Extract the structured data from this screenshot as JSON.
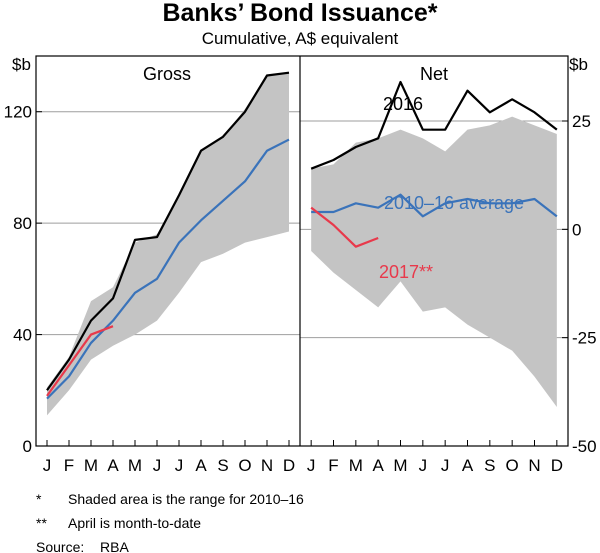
{
  "chart_data": {
    "title": "Banks’ Bond Issuance*",
    "subtitle": "Cumulative, A$ equivalent",
    "unit_left": "$b",
    "unit_right": "$b",
    "months": [
      "J",
      "F",
      "M",
      "A",
      "M",
      "J",
      "J",
      "A",
      "S",
      "O",
      "N",
      "D"
    ],
    "colors": {
      "range": "#c4c4c4",
      "black": "#000000",
      "blue": "#3a73ba",
      "red": "#e8394b"
    },
    "panels": [
      {
        "title": "Gross",
        "type": "line",
        "ylim": [
          0,
          140
        ],
        "yticks": [
          0,
          40,
          80,
          120
        ],
        "range_upper": [
          21,
          32,
          52,
          57,
          73,
          76,
          90,
          106,
          111,
          121,
          133,
          134
        ],
        "range_lower": [
          11,
          20,
          31,
          36,
          40,
          45,
          55,
          66,
          69,
          73,
          75,
          77
        ],
        "series": [
          {
            "key": "2016",
            "color": "black",
            "values": [
              20,
              31,
              45,
              53,
              74,
              75,
              90,
              106,
              111,
              120,
              133,
              134
            ]
          },
          {
            "key": "avg",
            "color": "blue",
            "values": [
              17,
              25,
              37,
              45,
              55,
              60,
              73,
              81,
              88,
              95,
              106,
              110
            ]
          },
          {
            "key": "2017",
            "color": "red",
            "values": [
              18,
              29,
              40,
              43
            ]
          }
        ]
      },
      {
        "title": "Net",
        "type": "line",
        "ylim": [
          -50,
          40
        ],
        "yticks": [
          -50,
          -25,
          0,
          25
        ],
        "range_upper": [
          14,
          15,
          20,
          21,
          23,
          21,
          18,
          23,
          24,
          26,
          24,
          22
        ],
        "range_lower": [
          -5,
          -10,
          -14,
          -18,
          -12,
          -19,
          -18,
          -22,
          -25,
          -28,
          -34,
          -41
        ],
        "series": [
          {
            "key": "2016",
            "color": "black",
            "values": [
              14,
              16,
              19,
              21,
              34,
              23,
              23,
              32,
              27,
              30,
              27,
              23
            ]
          },
          {
            "key": "avg",
            "color": "blue",
            "values": [
              4,
              4,
              6,
              5,
              8,
              3,
              6,
              7,
              6,
              6,
              7,
              3
            ]
          },
          {
            "key": "2017",
            "color": "red",
            "values": [
              5,
              1,
              -4,
              -2
            ]
          }
        ]
      }
    ],
    "annotations": {
      "s2016": "2016",
      "avg": "2010–16 average",
      "s2017": "2017**"
    },
    "notes": [
      {
        "mark": "*",
        "text": "Shaded area is the range for 2010–16"
      },
      {
        "mark": "**",
        "text": "April is month-to-date"
      }
    ],
    "source": {
      "label": "Source:",
      "text": "RBA"
    }
  }
}
